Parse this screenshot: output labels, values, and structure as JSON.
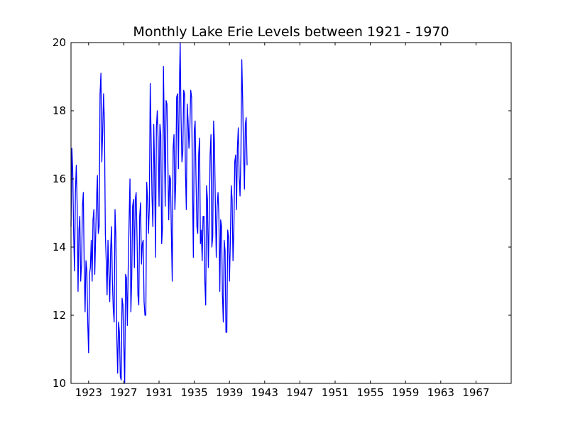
{
  "chart_data": {
    "type": "line",
    "title": "Monthly Lake Erie Levels between 1921 - 1970",
    "xlabel": "",
    "ylabel": "",
    "xlim": [
      1921,
      1971
    ],
    "ylim": [
      10,
      20
    ],
    "x_ticks": [
      1923,
      1927,
      1931,
      1935,
      1939,
      1943,
      1947,
      1951,
      1955,
      1959,
      1963,
      1967
    ],
    "y_ticks": [
      10,
      12,
      14,
      16,
      18,
      20
    ],
    "grid": false,
    "series": [
      {
        "color": "#0000ff",
        "start_year": 1921,
        "step_years": 0.1,
        "values": [
          14.6,
          16.9,
          16.2,
          14.4,
          13.3,
          15.6,
          16.4,
          15.2,
          12.7,
          14.5,
          14.9,
          13.0,
          13.5,
          15.2,
          15.6,
          13.4,
          12.1,
          13.6,
          13.3,
          11.8,
          10.9,
          13.2,
          13.4,
          14.2,
          13.0,
          14.8,
          15.1,
          13.2,
          14.3,
          15.4,
          16.1,
          14.4,
          14.6,
          18.5,
          19.1,
          16.5,
          17.4,
          18.5,
          17.6,
          14.4,
          13.6,
          12.6,
          14.2,
          13.3,
          12.4,
          13.9,
          14.6,
          13.0,
          12.2,
          11.8,
          15.1,
          14.3,
          11.4,
          10.3,
          11.8,
          11.5,
          10.2,
          10.1,
          12.5,
          12.3,
          11.1,
          10.0,
          13.2,
          13.1,
          11.7,
          13.4,
          14.8,
          16.0,
          12.1,
          13.1,
          15.2,
          15.4,
          13.4,
          15.4,
          15.6,
          14.3,
          12.6,
          12.3,
          14.9,
          15.3,
          13.5,
          14.1,
          14.2,
          12.4,
          12.0,
          12.0,
          15.9,
          15.4,
          14.4,
          15.2,
          18.8,
          17.2,
          15.5,
          14.6,
          17.6,
          16.2,
          13.7,
          17.5,
          18.0,
          17.1,
          15.2,
          17.6,
          17.3,
          14.1,
          14.6,
          19.3,
          17.3,
          15.2,
          18.3,
          18.2,
          16.5,
          14.8,
          16.1,
          16.0,
          14.4,
          13.0,
          16.9,
          17.3,
          15.1,
          15.9,
          18.4,
          18.5,
          16.3,
          18.5,
          20.0,
          17.8,
          16.5,
          16.8,
          18.6,
          18.5,
          16.2,
          15.1,
          18.2,
          17.7,
          16.9,
          17.5,
          18.6,
          18.4,
          15.8,
          13.7,
          17.4,
          17.7,
          16.0,
          14.6,
          14.4,
          16.7,
          17.2,
          14.1,
          14.5,
          13.6,
          14.9,
          14.9,
          13.0,
          12.3,
          15.8,
          15.4,
          13.4,
          14.8,
          16.7,
          17.3,
          14.0,
          14.3,
          17.7,
          17.0,
          15.2,
          13.7,
          15.2,
          15.6,
          14.9,
          12.7,
          14.8,
          14.6,
          12.6,
          11.8,
          14.2,
          13.9,
          11.5,
          11.5,
          14.5,
          14.3,
          13.0,
          14.2,
          15.8,
          15.4,
          13.6,
          14.5,
          16.5,
          16.7,
          15.1,
          16.9,
          17.5,
          16.1,
          15.5,
          16.7,
          19.5,
          18.3,
          16.8,
          15.7,
          17.6,
          17.8,
          16.4
        ]
      }
    ]
  }
}
